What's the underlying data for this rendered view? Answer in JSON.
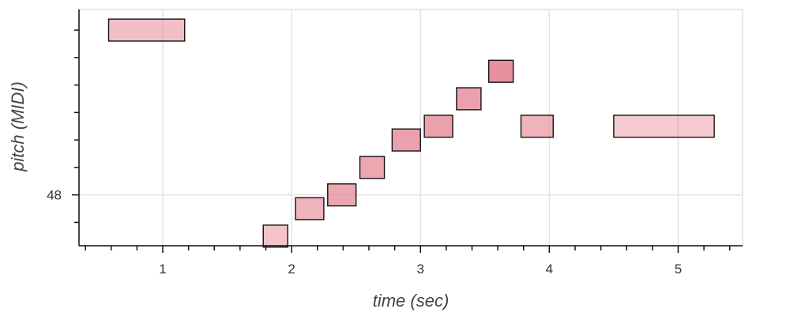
{
  "chart_data": {
    "type": "bar",
    "xlabel": "time (sec)",
    "ylabel": "pitch (MIDI)",
    "xlim": [
      0.35,
      5.5
    ],
    "ylim": [
      44.3,
      61.5
    ],
    "x_major_ticks": [
      1,
      2,
      3,
      4,
      5
    ],
    "x_minor_ticks": [
      0.4,
      0.6,
      0.8,
      1.2,
      1.4,
      1.6,
      1.8,
      2.2,
      2.4,
      2.6,
      2.8,
      3.2,
      3.4,
      3.6,
      3.8,
      4.2,
      4.4,
      4.6,
      4.8,
      5.2,
      5.4
    ],
    "y_labeled_ticks": [
      48
    ],
    "y_minor_ticks": [
      46,
      50,
      52,
      54,
      56,
      58,
      60
    ],
    "grid": true,
    "color": "#e68a96",
    "notes": [
      {
        "start": 0.58,
        "end": 1.17,
        "pitch": 60,
        "velocity": 0.55
      },
      {
        "start": 1.78,
        "end": 1.97,
        "pitch": 45,
        "velocity": 0.5
      },
      {
        "start": 2.03,
        "end": 2.25,
        "pitch": 47,
        "velocity": 0.65
      },
      {
        "start": 2.28,
        "end": 2.5,
        "pitch": 48,
        "velocity": 0.75
      },
      {
        "start": 2.53,
        "end": 2.72,
        "pitch": 50,
        "velocity": 0.75
      },
      {
        "start": 2.78,
        "end": 3.0,
        "pitch": 52,
        "velocity": 0.8
      },
      {
        "start": 3.03,
        "end": 3.25,
        "pitch": 53,
        "velocity": 0.8
      },
      {
        "start": 3.28,
        "end": 3.47,
        "pitch": 55,
        "velocity": 0.8
      },
      {
        "start": 3.53,
        "end": 3.72,
        "pitch": 57,
        "velocity": 0.95
      },
      {
        "start": 3.78,
        "end": 4.03,
        "pitch": 53,
        "velocity": 0.65
      },
      {
        "start": 4.5,
        "end": 5.28,
        "pitch": 53,
        "velocity": 0.45
      }
    ]
  }
}
